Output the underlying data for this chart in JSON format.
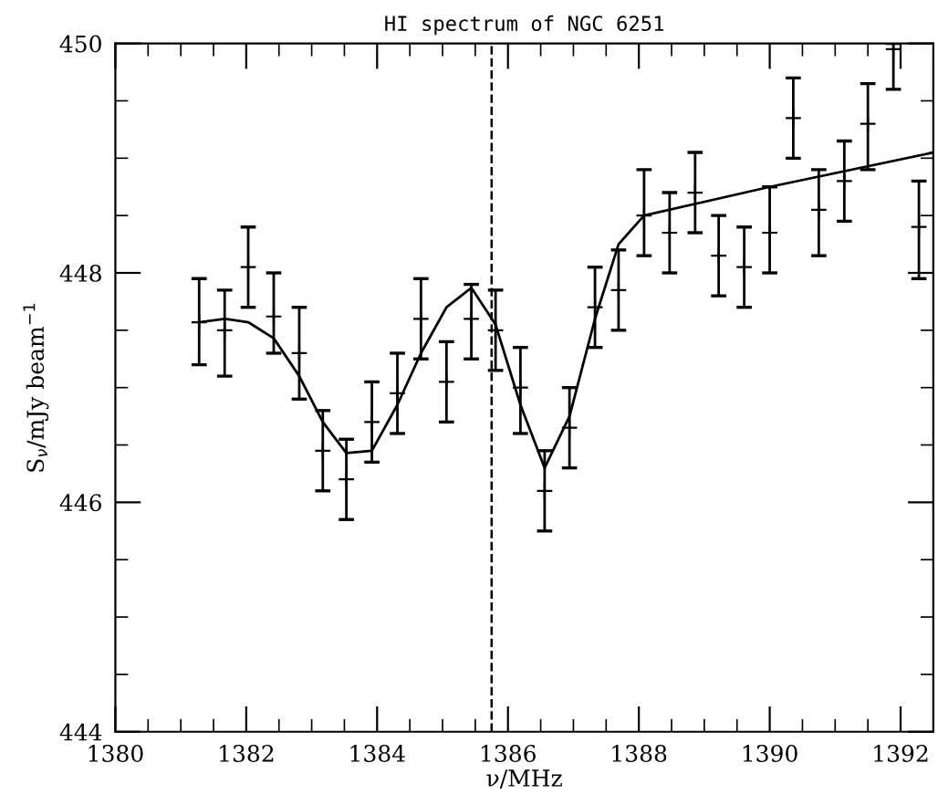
{
  "chart_data": {
    "type": "scatter",
    "title": "HI spectrum of NGC 6251",
    "xlabel": "ν/MHz",
    "ylabel": "S$_{ν}$/mJy beam$^{−1}$",
    "xlim": [
      1380,
      1392.5
    ],
    "ylim": [
      444,
      450
    ],
    "xticks": [
      1380,
      {
        "value": 1380.5,
        "label": null
      },
      {
        "value": 1381,
        "label": null
      },
      {
        "value": 1381.5,
        "label": null
      },
      1382,
      {
        "value": 1382.5,
        "label": null
      },
      {
        "value": 1383,
        "label": null
      },
      {
        "value": 1383.5,
        "label": null
      },
      1384,
      {
        "value": 1384.5,
        "label": null
      },
      {
        "value": 1385,
        "label": null
      },
      {
        "value": 1385.5,
        "label": null
      },
      1386,
      {
        "value": 1386.5,
        "label": null
      },
      {
        "value": 1387,
        "label": null
      },
      {
        "value": 1387.5,
        "label": null
      },
      1388,
      {
        "value": 1388.5,
        "label": null
      },
      {
        "value": 1389,
        "label": null
      },
      {
        "value": 1389.5,
        "label": null
      },
      1390,
      {
        "value": 1390.5,
        "label": null
      },
      {
        "value": 1391,
        "label": null
      },
      {
        "value": 1391.5,
        "label": null
      },
      1392,
      {
        "value": 1392.5,
        "label": null
      }
    ],
    "yticks": [
      444,
      {
        "value": 444.5,
        "label": null
      },
      {
        "value": 445,
        "label": null
      },
      {
        "value": 445.5,
        "label": null
      },
      446,
      {
        "value": 446.5,
        "label": null
      },
      {
        "value": 447,
        "label": null
      },
      {
        "value": 447.5,
        "label": null
      },
      448,
      {
        "value": 448.5,
        "label": null
      },
      {
        "value": 449,
        "label": null
      },
      {
        "value": 449.5,
        "label": null
      },
      450
    ],
    "grid": false,
    "ref_lines": [
      {
        "axis": "x",
        "value": 1385.75,
        "label": null,
        "color": "#000000",
        "line_style": "dashed"
      }
    ],
    "series": [
      {
        "color": "#000000",
        "marker": "cross",
        "x": [
          1381.28,
          1381.67,
          1382.03,
          1382.42,
          1382.81,
          1383.17,
          1383.53,
          1383.92,
          1384.31,
          1384.67,
          1385.06,
          1385.44,
          1385.81,
          1386.19,
          1386.56,
          1386.94,
          1387.33,
          1387.69,
          1388.08,
          1388.47,
          1388.86,
          1389.22,
          1389.61,
          1390.0,
          1390.36,
          1390.75,
          1391.14,
          1391.5,
          1391.89,
          1392.28
        ],
        "values": [
          447.57,
          447.5,
          448.05,
          447.62,
          447.3,
          446.45,
          446.2,
          446.7,
          446.95,
          447.6,
          447.05,
          447.6,
          447.5,
          447.0,
          446.1,
          446.65,
          447.7,
          447.85,
          448.5,
          448.35,
          448.7,
          448.15,
          448.05,
          448.35,
          449.35,
          448.55,
          448.8,
          449.3,
          449.95,
          448.4
        ],
        "errors": [
          [
            447.2,
            447.95
          ],
          [
            447.1,
            447.85
          ],
          [
            447.7,
            448.4
          ],
          [
            447.3,
            448.0
          ],
          [
            446.9,
            447.7
          ],
          [
            446.1,
            446.8
          ],
          [
            445.85,
            446.55
          ],
          [
            446.35,
            447.05
          ],
          [
            446.6,
            447.3
          ],
          [
            447.25,
            447.95
          ],
          [
            446.7,
            447.4
          ],
          [
            447.25,
            447.9
          ],
          [
            447.15,
            447.85
          ],
          [
            446.6,
            447.35
          ],
          [
            445.75,
            446.45
          ],
          [
            446.3,
            447.0
          ],
          [
            447.35,
            448.05
          ],
          [
            447.5,
            448.2
          ],
          [
            448.15,
            448.9
          ],
          [
            448.0,
            448.7
          ],
          [
            448.35,
            449.05
          ],
          [
            447.8,
            448.5
          ],
          [
            447.7,
            448.4
          ],
          [
            448.0,
            448.75
          ],
          [
            449.0,
            449.7
          ],
          [
            448.15,
            448.9
          ],
          [
            448.45,
            449.15
          ],
          [
            448.9,
            449.65
          ],
          [
            449.6,
            450.0
          ],
          [
            447.95,
            448.8
          ]
        ]
      },
      {
        "type": "line",
        "color": "#000000",
        "marker": "none",
        "line_style": "solid",
        "x": [
          1381.28,
          1381.67,
          1382.03,
          1382.42,
          1382.81,
          1383.17,
          1383.53,
          1383.92,
          1384.31,
          1384.67,
          1385.06,
          1385.44,
          1385.81,
          1386.19,
          1386.56,
          1386.94,
          1387.33,
          1387.69,
          1388.08,
          1390.0,
          1392.5
        ],
        "values": [
          447.57,
          447.6,
          447.57,
          447.43,
          447.1,
          446.7,
          446.43,
          446.45,
          446.85,
          447.3,
          447.7,
          447.87,
          447.55,
          446.85,
          446.3,
          446.75,
          447.6,
          448.25,
          448.5,
          448.75,
          449.05
        ]
      }
    ]
  }
}
